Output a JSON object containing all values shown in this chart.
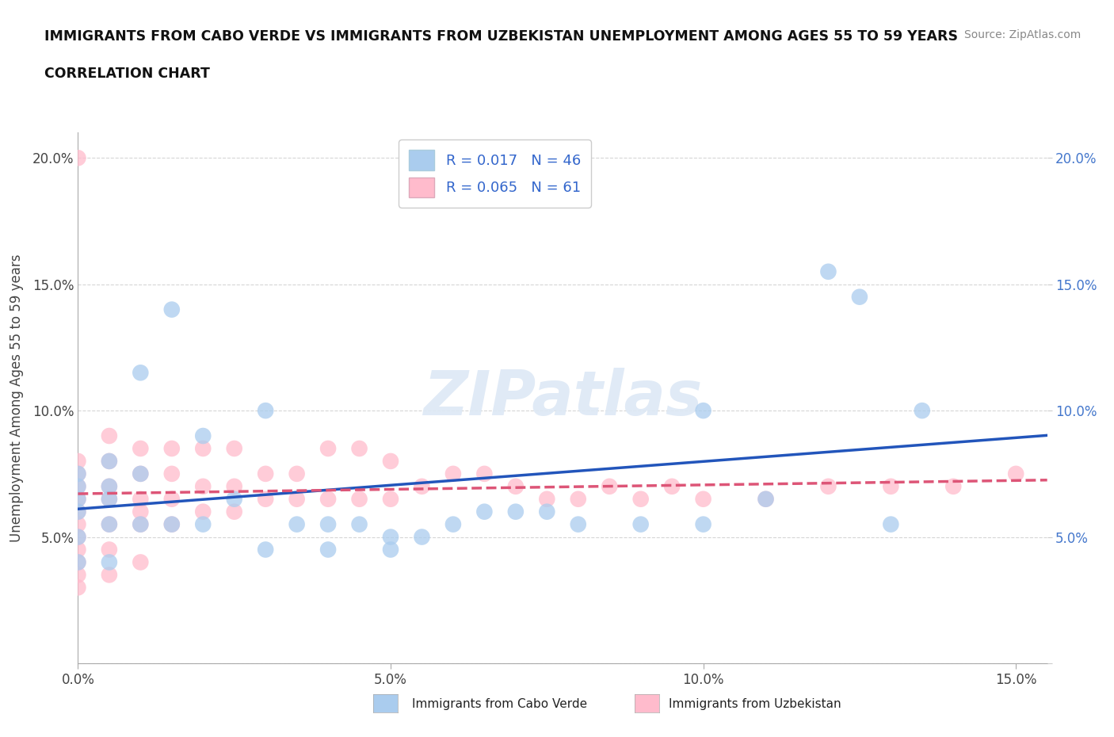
{
  "title_line1": "IMMIGRANTS FROM CABO VERDE VS IMMIGRANTS FROM UZBEKISTAN UNEMPLOYMENT AMONG AGES 55 TO 59 YEARS",
  "title_line2": "CORRELATION CHART",
  "source": "Source: ZipAtlas.com",
  "ylabel": "Unemployment Among Ages 55 to 59 years",
  "xlim": [
    0.0,
    0.155
  ],
  "ylim": [
    0.0,
    0.21
  ],
  "yticks": [
    0.0,
    0.05,
    0.1,
    0.15,
    0.2
  ],
  "ytick_labels_left": [
    "",
    "5.0%",
    "10.0%",
    "15.0%",
    "20.0%"
  ],
  "ytick_labels_right": [
    "",
    "5.0%",
    "10.0%",
    "15.0%",
    "20.0%"
  ],
  "xticks": [
    0.0,
    0.05,
    0.1,
    0.15
  ],
  "xtick_labels": [
    "0.0%",
    "5.0%",
    "10.0%",
    "15.0%"
  ],
  "cabo_verde_color": "#aaccee",
  "uzbekistan_color": "#ffbbcc",
  "cabo_verde_label": "Immigrants from Cabo Verde",
  "uzbekistan_label": "Immigrants from Uzbekistan",
  "cabo_verde_R": 0.017,
  "cabo_verde_N": 46,
  "uzbekistan_R": 0.065,
  "uzbekistan_N": 61,
  "cabo_verde_line_color": "#2255bb",
  "uzbekistan_line_color": "#dd5577",
  "watermark_text": "ZIPatlas",
  "cabo_verde_x": [
    0.0,
    0.0,
    0.0,
    0.0,
    0.0,
    0.0,
    0.005,
    0.005,
    0.005,
    0.005,
    0.005,
    0.01,
    0.01,
    0.01,
    0.015,
    0.015,
    0.02,
    0.02,
    0.025,
    0.03,
    0.03,
    0.035,
    0.04,
    0.04,
    0.045,
    0.05,
    0.05,
    0.055,
    0.06,
    0.065,
    0.07,
    0.075,
    0.08,
    0.09,
    0.1,
    0.1,
    0.11,
    0.12,
    0.125,
    0.13,
    0.135
  ],
  "cabo_verde_y": [
    0.075,
    0.07,
    0.065,
    0.06,
    0.05,
    0.04,
    0.08,
    0.07,
    0.065,
    0.055,
    0.04,
    0.115,
    0.075,
    0.055,
    0.14,
    0.055,
    0.09,
    0.055,
    0.065,
    0.1,
    0.045,
    0.055,
    0.055,
    0.045,
    0.055,
    0.05,
    0.045,
    0.05,
    0.055,
    0.06,
    0.06,
    0.06,
    0.055,
    0.055,
    0.1,
    0.055,
    0.065,
    0.155,
    0.145,
    0.055,
    0.1
  ],
  "uzbekistan_x": [
    0.0,
    0.0,
    0.0,
    0.0,
    0.0,
    0.0,
    0.0,
    0.0,
    0.0,
    0.0,
    0.0,
    0.0,
    0.005,
    0.005,
    0.005,
    0.005,
    0.005,
    0.005,
    0.005,
    0.01,
    0.01,
    0.01,
    0.01,
    0.01,
    0.01,
    0.015,
    0.015,
    0.015,
    0.015,
    0.02,
    0.02,
    0.02,
    0.025,
    0.025,
    0.025,
    0.03,
    0.03,
    0.035,
    0.035,
    0.04,
    0.04,
    0.045,
    0.045,
    0.05,
    0.05,
    0.055,
    0.06,
    0.065,
    0.07,
    0.075,
    0.08,
    0.085,
    0.09,
    0.095,
    0.1,
    0.11,
    0.12,
    0.13,
    0.14,
    0.15
  ],
  "uzbekistan_y": [
    0.2,
    0.08,
    0.075,
    0.07,
    0.065,
    0.06,
    0.055,
    0.05,
    0.045,
    0.04,
    0.035,
    0.03,
    0.09,
    0.08,
    0.07,
    0.065,
    0.055,
    0.045,
    0.035,
    0.085,
    0.075,
    0.065,
    0.06,
    0.055,
    0.04,
    0.085,
    0.075,
    0.065,
    0.055,
    0.085,
    0.07,
    0.06,
    0.085,
    0.07,
    0.06,
    0.075,
    0.065,
    0.075,
    0.065,
    0.085,
    0.065,
    0.085,
    0.065,
    0.08,
    0.065,
    0.07,
    0.075,
    0.075,
    0.07,
    0.065,
    0.065,
    0.07,
    0.065,
    0.07,
    0.065,
    0.065,
    0.07,
    0.07,
    0.07,
    0.075
  ]
}
